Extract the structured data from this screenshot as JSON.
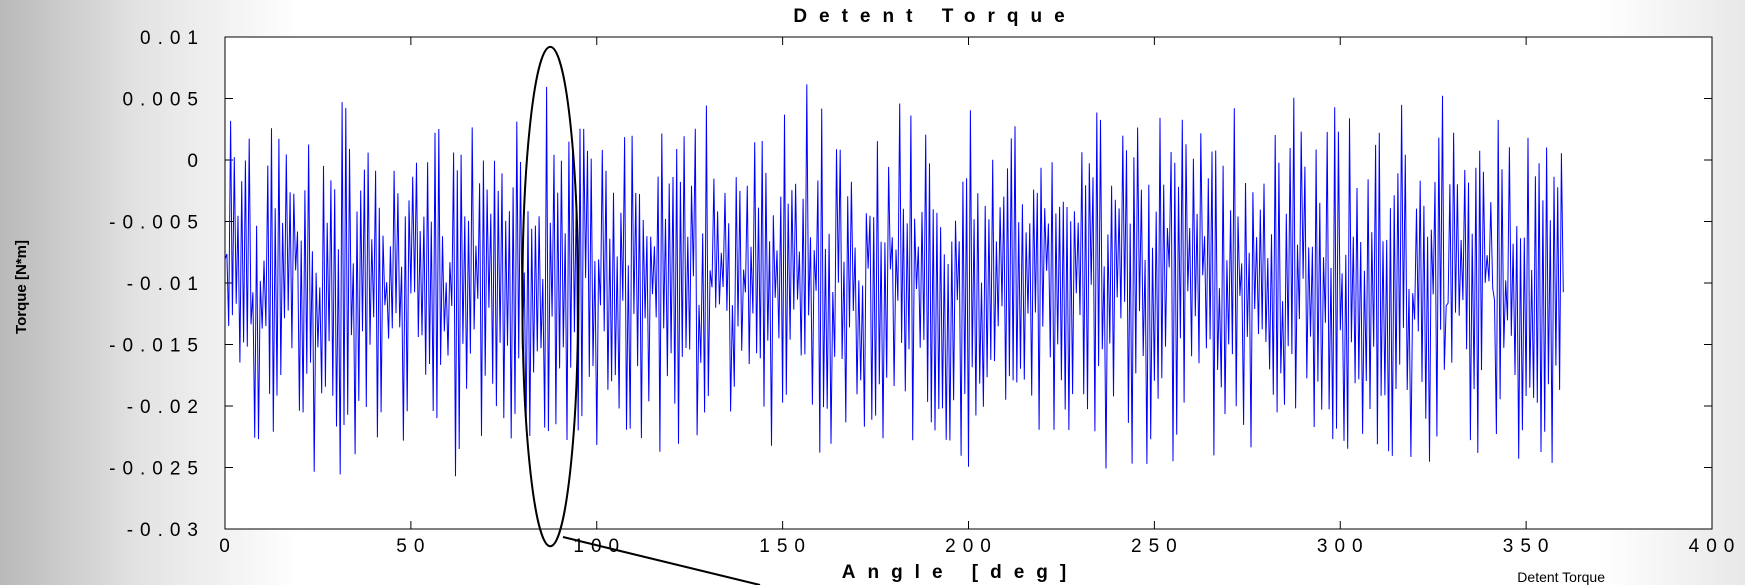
{
  "chart_data": {
    "type": "line",
    "title": "Detent Torque",
    "xlabel": "Angle [deg]",
    "ylabel": "Torque [N*m]",
    "xlim": [
      0,
      400
    ],
    "ylim": [
      -0.03,
      0.01
    ],
    "xticks": [
      0,
      50,
      100,
      150,
      200,
      250,
      300,
      350,
      400
    ],
    "xtick_labels": [
      "0",
      "50",
      "100",
      "150",
      "200",
      "250",
      "300",
      "350",
      "400"
    ],
    "yticks": [
      0.01,
      0.005,
      0,
      -0.005,
      -0.01,
      -0.015,
      -0.02,
      -0.025,
      -0.03
    ],
    "ytick_labels": [
      "0.01",
      "0.005",
      "0",
      "-0.005",
      "-0.01",
      "-0.015",
      "-0.02",
      "-0.025",
      "-0.03"
    ],
    "grid": false,
    "series": [
      {
        "color": "#0000ff",
        "x_start": 0,
        "x_end": 360,
        "mean": -0.01,
        "min": -0.0295,
        "max": 0.0096,
        "points": 720
      }
    ],
    "annotations": [
      {
        "type": "ellipse",
        "x_center": 87.5,
        "y_center": -0.0111,
        "x_halfwidth": 7.5,
        "y_halfwidth": 0.0203
      }
    ]
  },
  "caption": "Detent Torque",
  "colors": {
    "series": "#0000ff",
    "axes": "#000000",
    "plot_bg": "#ffffff"
  }
}
